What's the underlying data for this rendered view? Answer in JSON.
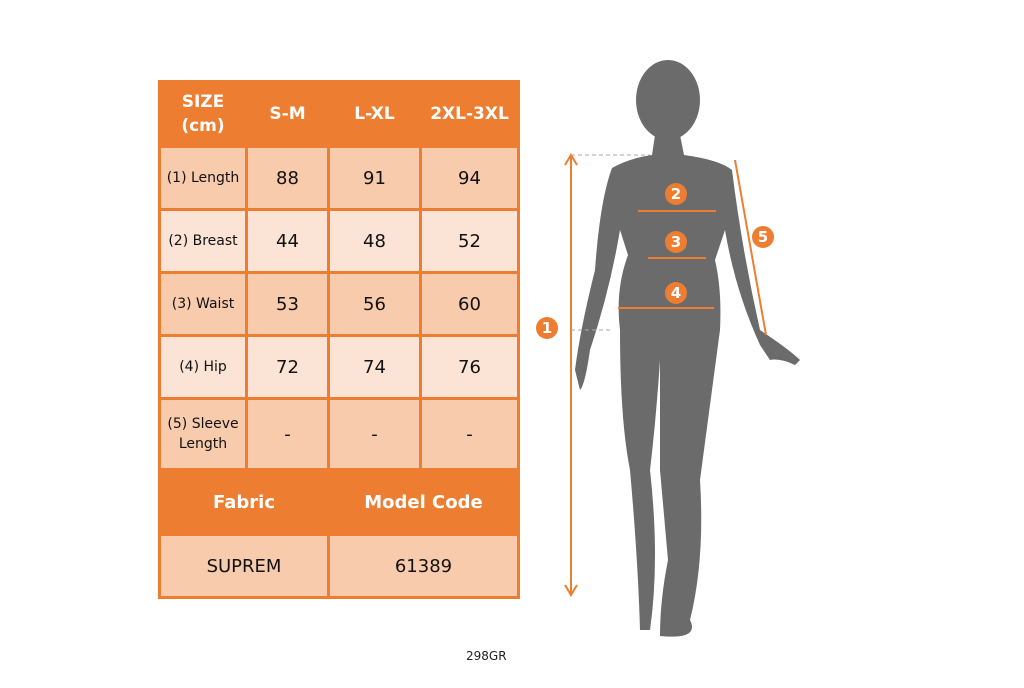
{
  "table": {
    "header": [
      "SIZE (cm)",
      "S-M",
      "L-XL",
      "2XL-3XL"
    ],
    "rows": [
      {
        "label": "(1) Length",
        "values": [
          "88",
          "91",
          "94"
        ]
      },
      {
        "label": "(2) Breast",
        "values": [
          "44",
          "48",
          "52"
        ]
      },
      {
        "label": "(3) Waist",
        "values": [
          "53",
          "56",
          "60"
        ]
      },
      {
        "label": "(4) Hip",
        "values": [
          "72",
          "74",
          "76"
        ]
      },
      {
        "label": "(5) Sleeve Length",
        "values": [
          "-",
          "-",
          "-"
        ]
      }
    ],
    "footer_headers": [
      "Fabric",
      "Model Code"
    ],
    "footer_values": [
      "SUPREM",
      "61389"
    ]
  },
  "figure": {
    "markers": [
      "1",
      "2",
      "3",
      "4",
      "5"
    ]
  },
  "product_code": "298GR",
  "colors": {
    "accent": "#ed7d31",
    "cell_dark": "#f8cbad",
    "cell_light": "#fbe4d5",
    "silhouette": "#6b6b6b"
  }
}
